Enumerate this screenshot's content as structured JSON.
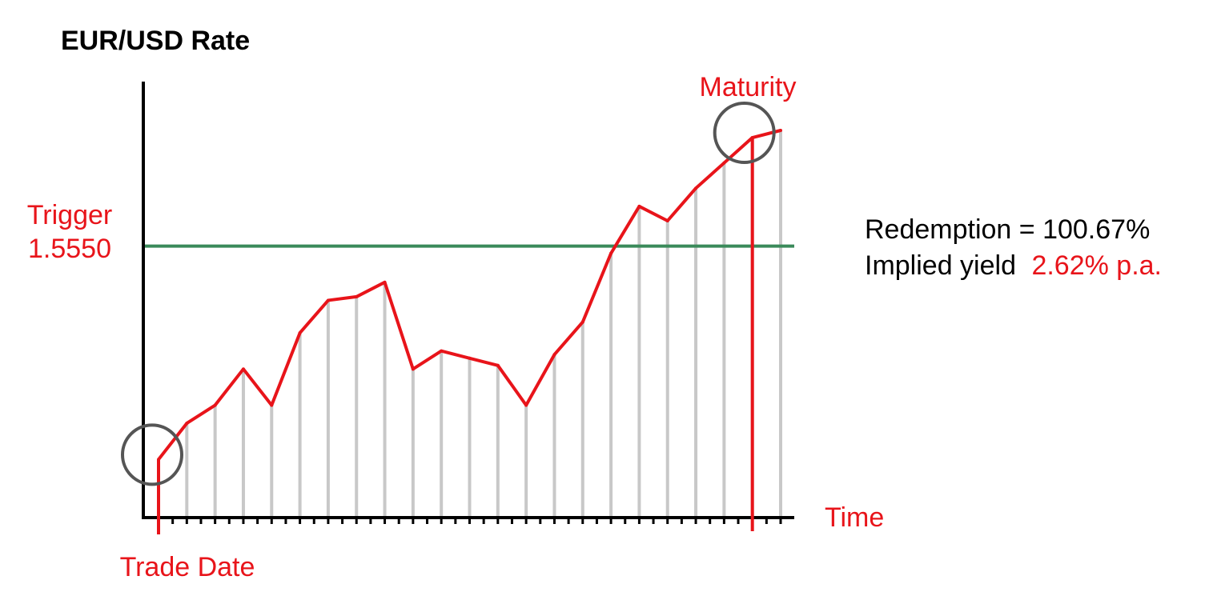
{
  "chart_data": {
    "type": "line",
    "title": "EUR/USD Rate",
    "xlabel": "Time",
    "ylabel": "",
    "trigger": {
      "label": "Trigger",
      "value": "1.5550"
    },
    "trade_date_label": "Trade Date",
    "maturity_label": "Maturity",
    "redemption_text": "Redemption = 100.67%",
    "implied_yield_prefix": "Implied yield",
    "implied_yield_value": "2.62% p.a.",
    "x": [
      0,
      1,
      2,
      3,
      4,
      5,
      6,
      7,
      8,
      9,
      10,
      11,
      12,
      13,
      14,
      15,
      16,
      17,
      18,
      19,
      20,
      21,
      22
    ],
    "y": [
      0.09,
      0.19,
      0.24,
      0.34,
      0.24,
      0.44,
      0.53,
      0.54,
      0.58,
      0.34,
      0.39,
      0.37,
      0.35,
      0.24,
      0.38,
      0.47,
      0.66,
      0.79,
      0.75,
      0.84,
      0.91,
      0.98,
      1.0
    ],
    "xlim": [
      0,
      22
    ],
    "trigger_level": 0.68,
    "maturity_index": 21,
    "colors": {
      "series": "#e8141a",
      "trigger_line": "#3a8a5a",
      "axis": "#000000",
      "droplines": "#c8c8c8",
      "circles": "#555555",
      "text_highlight": "#e8141a",
      "text": "#000000"
    }
  }
}
